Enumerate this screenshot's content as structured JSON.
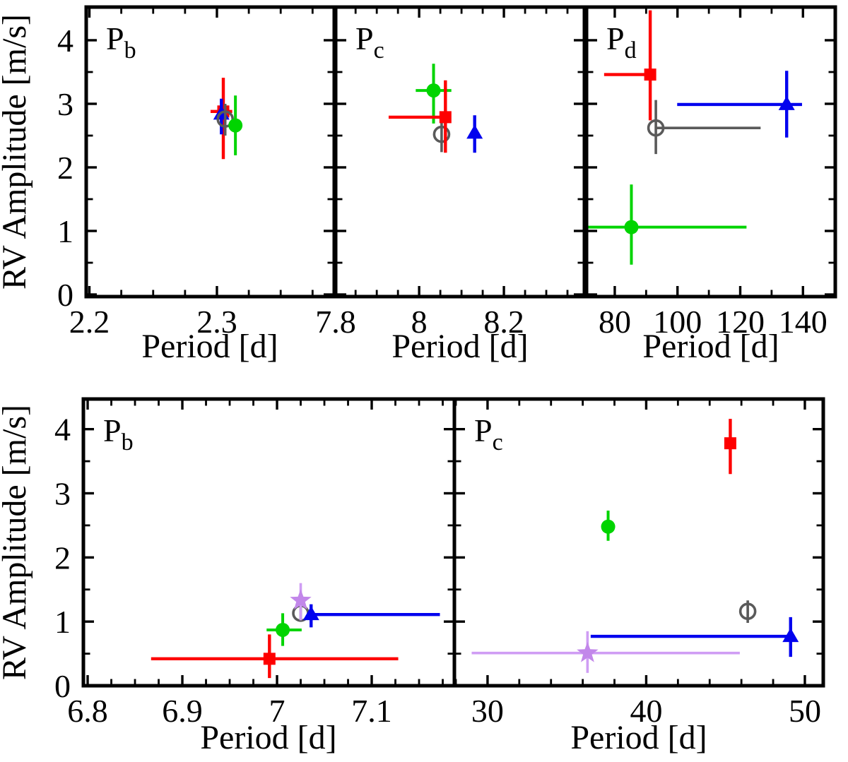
{
  "figure": {
    "ylabel": "RV Amplitude [m/s]",
    "xlabel": "Period [d]",
    "background": "#ffffff",
    "text_color": "#000000"
  },
  "series_styles": {
    "red": {
      "marker": "square",
      "color": "#fe0000",
      "line_color": "#fe0000",
      "line_width": 4.4
    },
    "green": {
      "marker": "circle",
      "color": "#00d400",
      "line_color": "#00d400",
      "line_width": 4.0
    },
    "blue": {
      "marker": "triangle-up",
      "color": "#0202ee",
      "line_color": "#0202ee",
      "line_width": 4.4
    },
    "gray": {
      "marker": "open-circle",
      "color": "#5a5a5a",
      "line_color": "#5a5a5a",
      "line_width": 3.6
    },
    "purple": {
      "marker": "star",
      "color": "#c287ea",
      "line_color": "#cf9df4",
      "line_width": 3.6
    }
  },
  "chart_data": [
    {
      "id": "top-pb",
      "type": "scatter",
      "label": {
        "main": "P",
        "sub": "b"
      },
      "xlim": [
        2.1975,
        2.392
      ],
      "ylim": [
        -0.033,
        4.522
      ],
      "xticks": [
        {
          "v": 2.2,
          "t": "2.2"
        },
        {
          "v": 2.3,
          "t": "2.3"
        }
      ],
      "xminor": [
        2.225,
        2.25,
        2.275,
        2.325,
        2.35,
        2.375
      ],
      "yticks": [
        {
          "v": 0,
          "t": "0"
        },
        {
          "v": 1,
          "t": "1"
        },
        {
          "v": 2,
          "t": "2"
        },
        {
          "v": 3,
          "t": "3"
        },
        {
          "v": 4,
          "t": "4"
        }
      ],
      "yminor": [
        0.5,
        1.5,
        2.5,
        3.5
      ],
      "show_ylabels": true,
      "points": [
        {
          "s": "red",
          "x": 2.305,
          "y": 2.88,
          "xlo": 2.295,
          "xhi": 2.312,
          "ylo": 2.13,
          "yhi": 3.41
        },
        {
          "s": "blue",
          "x": 2.3035,
          "y": 2.84,
          "ylo": 2.52,
          "yhi": 3.08
        },
        {
          "s": "gray",
          "x": 2.3065,
          "y": 2.76,
          "ylo": 2.5,
          "yhi": 3.0
        },
        {
          "s": "green",
          "x": 2.3145,
          "y": 2.66,
          "ylo": 2.19,
          "yhi": 3.13
        }
      ]
    },
    {
      "id": "top-pc",
      "type": "scatter",
      "label": {
        "main": "P",
        "sub": "c"
      },
      "xlim": [
        7.803,
        8.39
      ],
      "ylim": [
        -0.033,
        4.522
      ],
      "xticks": [
        {
          "v": 7.8,
          "t": "7.8"
        },
        {
          "v": 8.0,
          "t": "8"
        },
        {
          "v": 8.2,
          "t": "8.2"
        }
      ],
      "xminor": [
        7.85,
        7.9,
        7.95,
        8.05,
        8.1,
        8.15,
        8.25,
        8.3,
        8.35
      ],
      "yticks": [
        {
          "v": 0,
          "t": "0"
        },
        {
          "v": 1,
          "t": "1"
        },
        {
          "v": 2,
          "t": "2"
        },
        {
          "v": 3,
          "t": "3"
        },
        {
          "v": 4,
          "t": "4"
        }
      ],
      "yminor": [
        0.5,
        1.5,
        2.5,
        3.5
      ],
      "show_ylabels": false,
      "points": [
        {
          "s": "green",
          "x": 8.034,
          "y": 3.21,
          "xlo": 7.992,
          "xhi": 8.076,
          "ylo": 2.69,
          "yhi": 3.63
        },
        {
          "s": "gray",
          "x": 8.053,
          "y": 2.52,
          "ylo": 2.24,
          "yhi": 2.78
        },
        {
          "s": "red",
          "x": 8.062,
          "y": 2.79,
          "xlo": 7.928,
          "xhi": 8.072,
          "ylo": 2.23,
          "yhi": 3.37
        },
        {
          "s": "blue",
          "x": 8.131,
          "y": 2.54,
          "ylo": 2.23,
          "yhi": 2.82
        }
      ]
    },
    {
      "id": "top-pd",
      "type": "scatter",
      "label": {
        "main": "P",
        "sub": "d"
      },
      "xlim": [
        71,
        150.3
      ],
      "ylim": [
        -0.033,
        4.522
      ],
      "xticks": [
        {
          "v": 80,
          "t": "80"
        },
        {
          "v": 100,
          "t": "100"
        },
        {
          "v": 120,
          "t": "120"
        },
        {
          "v": 140,
          "t": "140"
        }
      ],
      "xminor": [
        90,
        110,
        130
      ],
      "yticks": [
        {
          "v": 0,
          "t": "0"
        },
        {
          "v": 1,
          "t": "1"
        },
        {
          "v": 2,
          "t": "2"
        },
        {
          "v": 3,
          "t": "3"
        },
        {
          "v": 4,
          "t": "4"
        }
      ],
      "yminor": [
        0.5,
        1.5,
        2.5,
        3.5
      ],
      "show_ylabels": false,
      "points": [
        {
          "s": "red",
          "x": 91.3,
          "y": 3.46,
          "xlo": 76.6,
          "xhi": 91.8,
          "ylo": 2.74,
          "yhi": 4.47
        },
        {
          "s": "gray",
          "x": 93.1,
          "y": 2.62,
          "xlo": 93.1,
          "xhi": 126.5,
          "ylo": 2.21,
          "yhi": 3.06
        },
        {
          "s": "blue",
          "x": 134.8,
          "y": 2.99,
          "xlo": 99.9,
          "xhi": 139.7,
          "ylo": 2.47,
          "yhi": 3.52
        },
        {
          "s": "green",
          "x": 85.3,
          "y": 1.06,
          "xlo": 70.6,
          "xhi": 122.0,
          "ylo": 0.47,
          "yhi": 1.73
        }
      ]
    },
    {
      "id": "bottom-pb",
      "type": "scatter",
      "label": {
        "main": "P",
        "sub": "b"
      },
      "xlim": [
        6.7955,
        7.1873
      ],
      "ylim": [
        0,
        4.47
      ],
      "xticks": [
        {
          "v": 6.8,
          "t": "6.8"
        },
        {
          "v": 6.9,
          "t": "6.9"
        },
        {
          "v": 7.0,
          "t": "7"
        },
        {
          "v": 7.1,
          "t": "7.1"
        }
      ],
      "xminor": [
        6.825,
        6.85,
        6.875,
        6.925,
        6.95,
        6.975,
        7.025,
        7.05,
        7.075,
        7.125,
        7.15,
        7.175
      ],
      "yticks": [
        {
          "v": 0,
          "t": "0"
        },
        {
          "v": 1,
          "t": "1"
        },
        {
          "v": 2,
          "t": "2"
        },
        {
          "v": 3,
          "t": "3"
        },
        {
          "v": 4,
          "t": "4"
        }
      ],
      "yminor": [
        0.5,
        1.5,
        2.5,
        3.5
      ],
      "show_ylabels": true,
      "points": [
        {
          "s": "red",
          "x": 6.992,
          "y": 0.42,
          "xlo": 6.867,
          "xhi": 7.128,
          "ylo": 0.12,
          "yhi": 0.8
        },
        {
          "s": "green",
          "x": 7.006,
          "y": 0.87,
          "xlo": 6.989,
          "xhi": 7.026,
          "ylo": 0.62,
          "yhi": 1.13
        },
        {
          "s": "gray",
          "x": 7.025,
          "y": 1.13,
          "ylo": 1.02,
          "yhi": 1.22
        },
        {
          "s": "blue",
          "x": 7.036,
          "y": 1.11,
          "xlo": 7.036,
          "xhi": 7.172,
          "ylo": 0.91,
          "yhi": 1.27
        },
        {
          "s": "purple",
          "x": 7.025,
          "y": 1.33,
          "ylo": 1.02,
          "yhi": 1.6
        }
      ]
    },
    {
      "id": "bottom-pc",
      "type": "scatter",
      "label": {
        "main": "P",
        "sub": "c"
      },
      "xlim": [
        27.91,
        51.16
      ],
      "ylim": [
        0,
        4.47
      ],
      "xticks": [
        {
          "v": 30,
          "t": "30"
        },
        {
          "v": 40,
          "t": "40"
        },
        {
          "v": 50,
          "t": "50"
        }
      ],
      "xminor": [
        28,
        32,
        34,
        36,
        38,
        42,
        44,
        46,
        48
      ],
      "yticks": [
        {
          "v": 0,
          "t": "0"
        },
        {
          "v": 1,
          "t": "1"
        },
        {
          "v": 2,
          "t": "2"
        },
        {
          "v": 3,
          "t": "3"
        },
        {
          "v": 4,
          "t": "4"
        }
      ],
      "yminor": [
        0.5,
        1.5,
        2.5,
        3.5
      ],
      "show_ylabels": false,
      "points": [
        {
          "s": "purple",
          "x": 36.3,
          "y": 0.51,
          "xlo": 29.0,
          "xhi": 45.9,
          "ylo": 0.2,
          "yhi": 0.85
        },
        {
          "s": "blue",
          "x": 49.1,
          "y": 0.77,
          "xlo": 36.5,
          "xhi": 49.1,
          "ylo": 0.45,
          "yhi": 1.07
        },
        {
          "s": "green",
          "x": 37.6,
          "y": 2.48,
          "ylo": 2.26,
          "yhi": 2.73
        },
        {
          "s": "gray",
          "x": 46.4,
          "y": 1.16,
          "ylo": 0.98,
          "yhi": 1.33
        },
        {
          "s": "red",
          "x": 45.3,
          "y": 3.78,
          "ylo": 3.3,
          "yhi": 4.16
        }
      ]
    }
  ]
}
